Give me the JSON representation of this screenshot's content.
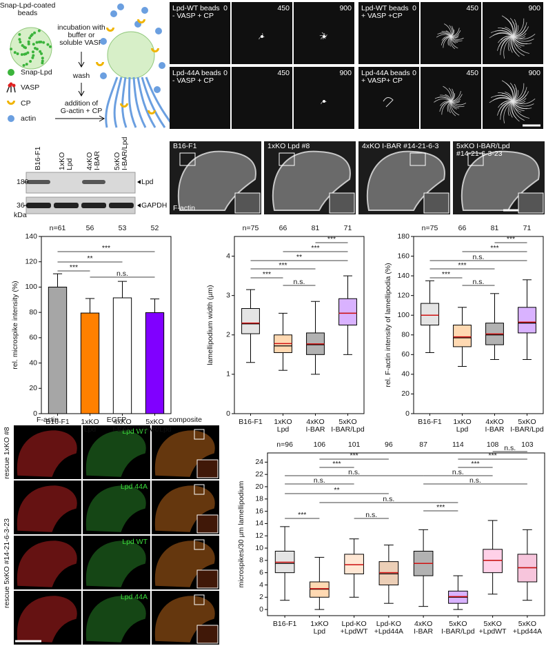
{
  "panel_a": {
    "bead_label": [
      "Snap-Lpd-coated",
      "beads"
    ],
    "legend": [
      "Snap-Lpd",
      "VASP",
      "CP",
      "actin"
    ],
    "steps": [
      [
        "incubation with",
        "buffer or",
        "soluble VASP"
      ],
      [
        "wash"
      ],
      [
        "addition of",
        "G-actin + CP"
      ]
    ]
  },
  "bead_assay": {
    "conditions": [
      [
        "Lpd-WT beads",
        "- VASP + CP"
      ],
      [
        "Lpd-WT beads",
        "+ VASP +CP"
      ],
      [
        "Lpd-44A beads",
        "- VASP + CP"
      ],
      [
        "Lpd-44A beads",
        "+ VASP+ CP"
      ]
    ],
    "timepoints": [
      "0",
      "450",
      "900"
    ]
  },
  "western": {
    "lanes": [
      [
        "B16-F1"
      ],
      [
        "1xKO",
        "Lpd"
      ],
      [
        "4xKO",
        "I-BAR"
      ],
      [
        "5xKO",
        "I-BAR/Lpd"
      ]
    ],
    "markers": [
      "180",
      "36"
    ],
    "unit": "kDa",
    "bands": [
      "Lpd",
      "GAPDH"
    ]
  },
  "cells": {
    "labels": [
      [
        "B16-F1"
      ],
      [
        "1xKO Lpd #8"
      ],
      [
        "4xKO I-BAR #14-21-6-3"
      ],
      [
        "5xKO I-BAR/Lpd",
        "#14-21-6-3-23"
      ]
    ],
    "stain": "F-actin"
  },
  "rescue": {
    "columns": [
      "F-actin",
      "EGFP",
      "composite"
    ],
    "rows": [
      "rescue 1xKO #8",
      "rescue 5xKO #14-21-6-3-23"
    ],
    "constructs": [
      "Lpd WT",
      "Lpd 44A",
      "Lpd WT",
      "Lpd 44A"
    ]
  },
  "chart_data": [
    {
      "type": "bar",
      "y_label": "rel. microspike intensity (%)",
      "categories": [
        [
          "B16-F1"
        ],
        [
          "1xKO",
          "Lpd"
        ],
        [
          "4xKO",
          "I-BAR"
        ],
        [
          "5xKO",
          "I-BAR/Lpd"
        ]
      ],
      "values": [
        100,
        79.5,
        91.5,
        79.8
      ],
      "errors": [
        10.5,
        11.5,
        13,
        10.8
      ],
      "colors": [
        "#a6a6a6",
        "#ff8000",
        "#ffffff",
        "#8000ff"
      ],
      "n_labels": [
        "n=61",
        "56",
        "53",
        "52"
      ],
      "ylim": [
        0,
        140
      ],
      "yticks": [
        0,
        20,
        40,
        60,
        80,
        100,
        120,
        140
      ],
      "comparisons": [
        {
          "between": [
            0,
            3
          ],
          "label": "***"
        },
        {
          "between": [
            0,
            2
          ],
          "label": "**"
        },
        {
          "between": [
            0,
            1
          ],
          "label": "***"
        },
        {
          "between": [
            1,
            3
          ],
          "label": "n.s."
        }
      ]
    },
    {
      "type": "box",
      "y_label": "lamellipodium width (µm)",
      "categories": [
        [
          "B16-F1"
        ],
        [
          "1xKO",
          "Lpd"
        ],
        [
          "4xKO",
          "I-BAR"
        ],
        [
          "5xKO",
          "I-BAR/Lpd"
        ]
      ],
      "colors": [
        "#a6a6a6",
        "#ff8000",
        "#000000",
        "#8000ff"
      ],
      "n_labels": [
        "n=75",
        "66",
        "81",
        "71"
      ],
      "ylim": [
        0,
        4.5
      ],
      "yticks": [
        0,
        1,
        2,
        3,
        4
      ],
      "boxes": [
        {
          "whisker_low": 1.3,
          "q1": 2.03,
          "median": 2.28,
          "q3": 2.67,
          "whisker_high": 3.15,
          "mean": 2.3
        },
        {
          "whisker_low": 1.1,
          "q1": 1.55,
          "median": 1.72,
          "q3": 2.0,
          "whisker_high": 2.55,
          "mean": 1.78
        },
        {
          "whisker_low": 1.0,
          "q1": 1.5,
          "median": 1.75,
          "q3": 2.05,
          "whisker_high": 2.85,
          "mean": 1.77
        },
        {
          "whisker_low": 1.5,
          "q1": 2.25,
          "median": 2.55,
          "q3": 2.92,
          "whisker_high": 3.5,
          "mean": 2.55
        }
      ],
      "comparisons": [
        {
          "between": [
            2,
            3
          ],
          "label": "***"
        },
        {
          "between": [
            1,
            3
          ],
          "label": "***"
        },
        {
          "between": [
            0,
            3
          ],
          "label": "**"
        },
        {
          "between": [
            0,
            2
          ],
          "label": "***"
        },
        {
          "between": [
            0,
            1
          ],
          "label": "***"
        },
        {
          "between": [
            1,
            2
          ],
          "label": "n.s."
        }
      ]
    },
    {
      "type": "box",
      "y_label": "rel. F-actin intensity of lamellipodia (%)",
      "categories": [
        [
          "B16-F1"
        ],
        [
          "1xKO",
          "Lpd"
        ],
        [
          "4xKO",
          "I-BAR"
        ],
        [
          "5xKO",
          "I-BAR/Lpd"
        ]
      ],
      "colors": [
        "#a6a6a6",
        "#ff8000",
        "#000000",
        "#8000ff"
      ],
      "n_labels": [
        "n=75",
        "66",
        "81",
        "71"
      ],
      "ylim": [
        0,
        180
      ],
      "yticks": [
        0,
        20,
        40,
        60,
        80,
        100,
        120,
        140,
        160,
        180
      ],
      "boxes": [
        {
          "whisker_low": 62,
          "q1": 90,
          "median": 100,
          "q3": 112,
          "whisker_high": 135,
          "mean": 100
        },
        {
          "whisker_low": 48,
          "q1": 68,
          "median": 77,
          "q3": 90,
          "whisker_high": 108,
          "mean": 78
        },
        {
          "whisker_low": 55,
          "q1": 70,
          "median": 80,
          "q3": 92,
          "whisker_high": 122,
          "mean": 81
        },
        {
          "whisker_low": 55,
          "q1": 82,
          "median": 92,
          "q3": 108,
          "whisker_high": 136,
          "mean": 93
        }
      ],
      "comparisons": [
        {
          "between": [
            2,
            3
          ],
          "label": "***"
        },
        {
          "between": [
            1,
            3
          ],
          "label": "***"
        },
        {
          "between": [
            0,
            3
          ],
          "label": "n.s."
        },
        {
          "between": [
            0,
            2
          ],
          "label": "***"
        },
        {
          "between": [
            0,
            1
          ],
          "label": "***"
        },
        {
          "between": [
            1,
            2
          ],
          "label": "n.s."
        }
      ]
    },
    {
      "type": "box",
      "y_label": "microspikes/30 µm lamellipodium",
      "categories": [
        [
          "B16-F1"
        ],
        [
          "1xKO",
          "Lpd"
        ],
        [
          "Lpd-KO",
          "+LpdWT"
        ],
        [
          "Lpd-KO",
          "+Lpd44A"
        ],
        [
          "4xKO",
          "I-BAR"
        ],
        [
          "5xKO",
          "I-BAR/Lpd"
        ],
        [
          "5xKO",
          "+LpdWT"
        ],
        [
          "5xKO",
          "+Lpd44A"
        ]
      ],
      "colors": [
        "#a6a6a6",
        "#ff8000",
        "#ffb070",
        "#c06010",
        "#000000",
        "#8000ff",
        "#ff66b3",
        "#e6408a"
      ],
      "n_labels": [
        "n=96",
        "106",
        "101",
        "96",
        "87",
        "114",
        "108",
        "103"
      ],
      "ylim": [
        -1,
        25.5
      ],
      "yticks": [
        0,
        2,
        4,
        6,
        8,
        10,
        12,
        14,
        16,
        18,
        20,
        22,
        24
      ],
      "boxes": [
        {
          "whisker_low": 1.5,
          "q1": 6,
          "median": 7.5,
          "q3": 9.5,
          "whisker_high": 13.5,
          "mean": 7.7
        },
        {
          "whisker_low": 0,
          "q1": 2,
          "median": 3.3,
          "q3": 4.5,
          "whisker_high": 8.5,
          "mean": 3.4
        },
        {
          "whisker_low": 2,
          "q1": 5.8,
          "median": 7.3,
          "q3": 9,
          "whisker_high": 11.5,
          "mean": 7.3
        },
        {
          "whisker_low": 1,
          "q1": 4,
          "median": 5.8,
          "q3": 7.8,
          "whisker_high": 10.5,
          "mean": 6
        },
        {
          "whisker_low": 0.5,
          "q1": 5.5,
          "median": 7.5,
          "q3": 9.5,
          "whisker_high": 13,
          "mean": 7.5
        },
        {
          "whisker_low": 0,
          "q1": 1,
          "median": 2,
          "q3": 3,
          "whisker_high": 5.5,
          "mean": 2.1
        },
        {
          "whisker_low": 2.5,
          "q1": 6,
          "median": 8,
          "q3": 9.8,
          "whisker_high": 14.5,
          "mean": 8
        },
        {
          "whisker_low": 1.5,
          "q1": 4.5,
          "median": 6.8,
          "q3": 9,
          "whisker_high": 13,
          "mean": 6.8
        }
      ],
      "comparisons": [
        {
          "between": [
            6,
            7
          ],
          "label": "n.s."
        },
        {
          "between": [
            1,
            3
          ],
          "label": "***"
        },
        {
          "between": [
            5,
            7
          ],
          "label": "***"
        },
        {
          "between": [
            1,
            2
          ],
          "label": "***"
        },
        {
          "between": [
            5,
            6
          ],
          "label": "***"
        },
        {
          "between": [
            0,
            4
          ],
          "label": "n.s."
        },
        {
          "between": [
            4,
            6
          ],
          "label": "n.s."
        },
        {
          "between": [
            0,
            2
          ],
          "label": "n.s."
        },
        {
          "between": [
            4,
            7
          ],
          "label": "n.s."
        },
        {
          "between": [
            0,
            3
          ],
          "label": "**"
        },
        {
          "between": [
            1,
            5
          ],
          "label": "n.s."
        },
        {
          "between": [
            4,
            5
          ],
          "label": "***"
        },
        {
          "between": [
            0,
            1
          ],
          "label": "***"
        },
        {
          "between": [
            2,
            3
          ],
          "label": "n.s."
        }
      ]
    }
  ]
}
